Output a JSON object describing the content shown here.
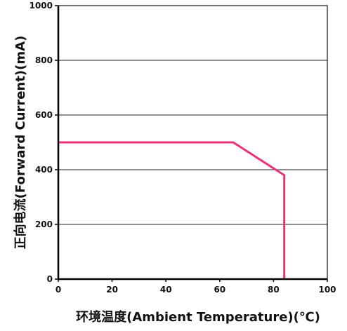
{
  "chart_data": {
    "type": "line",
    "title": "",
    "xlabel": "环境温度(Ambient Temperature)(℃)",
    "ylabel": "正向电流(Forward Current)(mA)",
    "xlim": [
      0,
      100
    ],
    "ylim": [
      0,
      1000
    ],
    "x_ticks": [
      0,
      20,
      40,
      60,
      80,
      100
    ],
    "y_ticks": [
      0,
      200,
      400,
      600,
      800,
      1000
    ],
    "grid": {
      "horizontal": true,
      "vertical": false
    },
    "series": [
      {
        "x": [
          0,
          65,
          84,
          84
        ],
        "y": [
          500,
          500,
          380,
          0
        ],
        "color": "#e8337a"
      }
    ]
  }
}
